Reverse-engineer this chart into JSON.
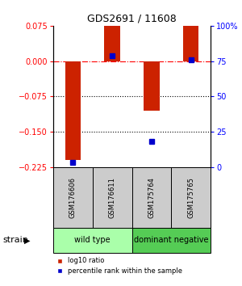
{
  "title": "GDS2691 / 11608",
  "samples": [
    "GSM176606",
    "GSM176611",
    "GSM175764",
    "GSM175765"
  ],
  "log10_ratio": [
    -0.21,
    0.075,
    -0.105,
    0.075
  ],
  "percentile_rank": [
    3,
    79,
    18,
    76
  ],
  "group_defs": [
    {
      "label": "wild type",
      "start": 0,
      "end": 1,
      "color": "#aaffaa"
    },
    {
      "label": "dominant negative",
      "start": 2,
      "end": 3,
      "color": "#55cc55"
    }
  ],
  "group_label": "strain",
  "ylim_left": [
    -0.225,
    0.075
  ],
  "ylim_right": [
    0,
    100
  ],
  "yticks_left": [
    0.075,
    0,
    -0.075,
    -0.15,
    -0.225
  ],
  "yticks_right": [
    100,
    75,
    50,
    25,
    0
  ],
  "bar_color": "#cc2200",
  "dot_color": "#0000cc",
  "hline_y": 0,
  "dotted_lines": [
    -0.075,
    -0.15
  ],
  "background_color": "#ffffff",
  "plot_bg": "#ffffff",
  "label_bg": "#cccccc",
  "bar_width": 0.4
}
